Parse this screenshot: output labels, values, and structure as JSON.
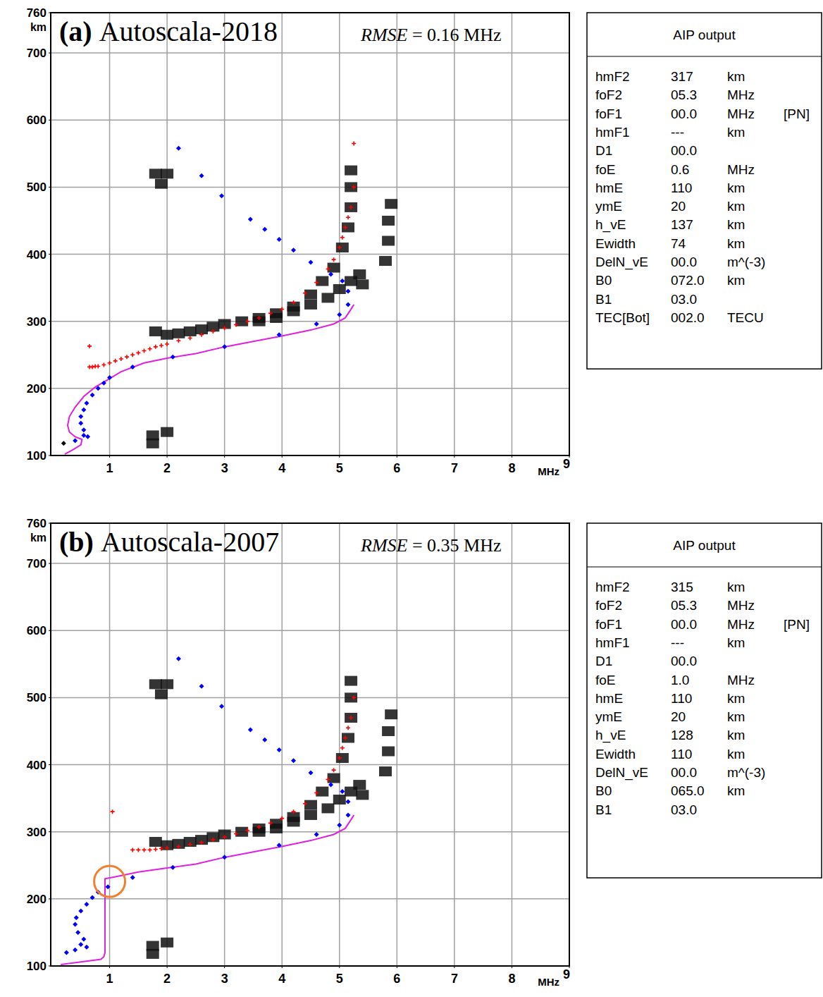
{
  "chart_data": [
    {
      "type": "scatter",
      "panel_label": "(a)",
      "title": "Autoscala-2018",
      "subtitle": "RMSE = 0.16 MHz",
      "xlabel": "MHz",
      "ylabel": "km",
      "xlim": [
        0,
        9
      ],
      "ylim": [
        100,
        760
      ],
      "xticks": [
        1,
        2,
        3,
        4,
        5,
        6,
        7,
        8,
        9
      ],
      "yticks": [
        100,
        200,
        300,
        400,
        500,
        600,
        700,
        760
      ],
      "grid": true,
      "series": [
        {
          "type": "scatter",
          "marker": "square",
          "color": "#111111",
          "x": [
            1.8,
            2.0,
            2.2,
            2.4,
            2.6,
            2.8,
            3.0,
            3.3,
            3.6,
            3.9,
            4.2,
            4.5,
            4.7,
            4.9,
            5.05,
            5.15,
            5.2,
            5.2,
            5.2,
            3.6,
            3.9,
            4.2,
            4.5,
            4.8,
            5.0,
            5.2,
            5.35,
            5.4,
            5.8,
            5.85,
            5.85,
            5.9,
            1.8,
            2.0,
            1.9,
            1.75,
            2.0,
            1.75
          ],
          "values": [
            285,
            280,
            282,
            285,
            288,
            292,
            296,
            300,
            305,
            312,
            322,
            340,
            360,
            380,
            410,
            440,
            470,
            500,
            525,
            300,
            305,
            315,
            325,
            335,
            348,
            360,
            370,
            355,
            390,
            420,
            450,
            475,
            520,
            520,
            505,
            130,
            135,
            118
          ]
        },
        {
          "type": "line",
          "line_style": "solid",
          "color": "#e020e0",
          "x": [
            0.22,
            0.35,
            0.5,
            0.52,
            0.4,
            0.3,
            0.27,
            0.3,
            0.4,
            0.55,
            0.75,
            0.95,
            1.2,
            1.6,
            2.0,
            2.5,
            3.0,
            3.5,
            4.0,
            4.5,
            4.9,
            5.1,
            5.2,
            5.25
          ],
          "values": [
            102,
            108,
            116,
            124,
            128,
            135,
            145,
            158,
            172,
            188,
            202,
            212,
            225,
            238,
            245,
            252,
            262,
            270,
            278,
            287,
            296,
            305,
            318,
            325
          ]
        },
        {
          "type": "scatter",
          "marker": "plus",
          "color": "#ff0000",
          "x": [
            0.65,
            0.7,
            0.75,
            0.8,
            0.9,
            1.0,
            1.1,
            1.2,
            1.3,
            1.4,
            1.5,
            1.6,
            1.7,
            1.8,
            1.9,
            2.0,
            2.2,
            2.4,
            2.6,
            2.8,
            3.0,
            3.2,
            3.4,
            3.6,
            3.8,
            4.0,
            4.2,
            4.4,
            4.6,
            4.8,
            4.9,
            5.0,
            5.05,
            5.1,
            5.15,
            5.2,
            5.25,
            0.65,
            5.25
          ],
          "values": [
            232,
            232,
            233,
            233,
            235,
            238,
            241,
            244,
            247,
            250,
            253,
            256,
            259,
            262,
            264,
            266,
            271,
            275,
            280,
            285,
            290,
            295,
            300,
            305,
            312,
            318,
            328,
            342,
            358,
            378,
            392,
            410,
            425,
            440,
            455,
            470,
            500,
            263,
            565
          ]
        },
        {
          "type": "scatter",
          "marker": "diamond",
          "color": "#0000ff",
          "x": [
            0.4,
            0.55,
            0.62,
            0.55,
            0.5,
            0.5,
            0.55,
            0.6,
            0.7,
            0.8,
            0.9,
            1.0,
            1.4,
            2.1,
            3.0,
            3.95,
            4.6,
            5.0,
            5.15,
            5.15,
            5.05,
            4.85,
            4.5,
            4.2,
            3.95,
            3.7,
            3.45,
            2.95,
            2.6,
            2.2
          ],
          "values": [
            122,
            130,
            128,
            138,
            148,
            158,
            168,
            178,
            190,
            200,
            208,
            216,
            232,
            247,
            262,
            280,
            296,
            310,
            325,
            345,
            360,
            370,
            388,
            406,
            422,
            437,
            452,
            487,
            517,
            558
          ]
        },
        {
          "type": "scatter",
          "marker": "diamond",
          "color": "#000000",
          "x": [
            0.2
          ],
          "values": [
            118
          ]
        }
      ]
    },
    {
      "type": "scatter",
      "panel_label": "(b)",
      "title": "Autoscala-2007",
      "subtitle": "RMSE = 0.35 MHz",
      "xlabel": "MHz",
      "ylabel": "km",
      "xlim": [
        0,
        9
      ],
      "ylim": [
        100,
        760
      ],
      "xticks": [
        1,
        2,
        3,
        4,
        5,
        6,
        7,
        8,
        9
      ],
      "yticks": [
        100,
        200,
        300,
        400,
        500,
        600,
        700,
        760
      ],
      "grid": true,
      "series": [
        {
          "type": "scatter",
          "marker": "square",
          "color": "#111111",
          "x": [
            1.8,
            2.0,
            2.2,
            2.4,
            2.6,
            2.8,
            3.0,
            3.3,
            3.6,
            3.9,
            4.2,
            4.5,
            4.7,
            4.9,
            5.05,
            5.15,
            5.2,
            5.2,
            5.2,
            3.6,
            3.9,
            4.2,
            4.5,
            4.8,
            5.0,
            5.2,
            5.35,
            5.4,
            5.8,
            5.85,
            5.85,
            5.9,
            1.8,
            2.0,
            1.9,
            1.75,
            2.0,
            1.75
          ],
          "values": [
            285,
            280,
            282,
            285,
            288,
            292,
            296,
            300,
            305,
            312,
            322,
            340,
            360,
            380,
            410,
            440,
            470,
            500,
            525,
            300,
            305,
            315,
            325,
            335,
            348,
            360,
            370,
            355,
            390,
            420,
            450,
            475,
            520,
            520,
            505,
            130,
            135,
            118
          ]
        },
        {
          "type": "line",
          "line_style": "solid",
          "color": "#e020e0",
          "x": [
            0.15,
            0.5,
            0.85,
            0.9,
            0.92,
            0.92,
            1.1,
            1.5,
            2.0,
            2.5,
            3.0,
            3.5,
            4.0,
            4.5,
            4.9,
            5.1,
            5.2,
            5.25
          ],
          "values": [
            102,
            106,
            110,
            114,
            120,
            230,
            233,
            240,
            246,
            252,
            262,
            270,
            278,
            287,
            296,
            305,
            318,
            325
          ]
        },
        {
          "type": "scatter",
          "marker": "plus",
          "color": "#ff0000",
          "x": [
            1.4,
            1.5,
            1.6,
            1.7,
            1.8,
            1.9,
            2.0,
            2.2,
            2.4,
            2.6,
            2.8,
            3.0,
            3.2,
            3.4,
            3.6,
            3.8,
            4.0,
            4.2,
            4.4,
            4.6,
            4.8,
            4.9,
            5.0,
            5.05,
            5.1,
            5.15,
            5.2,
            5.25,
            1.05
          ],
          "values": [
            273,
            273,
            273,
            273,
            274,
            275,
            276,
            278,
            281,
            284,
            288,
            292,
            297,
            302,
            307,
            313,
            320,
            330,
            342,
            358,
            378,
            392,
            410,
            425,
            440,
            455,
            470,
            500,
            330
          ]
        },
        {
          "type": "scatter",
          "marker": "diamond",
          "color": "#0000ff",
          "x": [
            0.25,
            0.4,
            0.5,
            0.6,
            0.55,
            0.45,
            0.4,
            0.42,
            0.5,
            0.6,
            0.7,
            0.8,
            0.97,
            1.4,
            2.1,
            3.0,
            3.95,
            4.6,
            5.0,
            5.15,
            5.15,
            5.05,
            4.85,
            4.5,
            4.2,
            3.95,
            3.7,
            3.45,
            2.95,
            2.6,
            2.2
          ],
          "values": [
            120,
            124,
            132,
            128,
            140,
            150,
            162,
            172,
            182,
            192,
            202,
            210,
            218,
            232,
            247,
            262,
            280,
            296,
            310,
            325,
            345,
            360,
            370,
            388,
            406,
            422,
            437,
            452,
            487,
            517,
            558
          ]
        }
      ],
      "annotations": [
        {
          "type": "circle",
          "x": 1.0,
          "y": 226,
          "color": "#f08030"
        }
      ]
    }
  ],
  "aip_output": [
    {
      "title": "AIP output",
      "rows": [
        [
          "hmF2",
          "317",
          "km"
        ],
        [
          "foF2",
          "05.3",
          "MHz"
        ],
        [
          "foF1",
          "00.0",
          "MHz",
          "[PN]"
        ],
        [
          "hmF1",
          "---",
          "km"
        ],
        [
          "D1",
          "00.0"
        ],
        [
          "foE",
          "0.6",
          "MHz"
        ],
        [
          "hmE",
          "110",
          "km"
        ],
        [
          "ymE",
          "20",
          "km"
        ],
        [
          "h_vE",
          "137",
          "km"
        ],
        [
          "Ewidth",
          "74",
          "km"
        ],
        [
          "DelN_vE",
          "00.0",
          "m^(-3)"
        ],
        [
          "B0",
          "072.0",
          "km"
        ],
        [
          "B1",
          "03.0"
        ],
        [
          "TEC[Bot]",
          "002.0",
          "TECU"
        ]
      ]
    },
    {
      "title": "AIP output",
      "rows": [
        [
          "hmF2",
          "315",
          "km"
        ],
        [
          "foF2",
          "05.3",
          "MHz"
        ],
        [
          "foF1",
          "00.0",
          "MHz",
          "[PN]"
        ],
        [
          "hmF1",
          "---",
          "km"
        ],
        [
          "D1",
          "00.0"
        ],
        [
          "foE",
          "1.0",
          "MHz"
        ],
        [
          "hmE",
          "110",
          "km"
        ],
        [
          "ymE",
          "20",
          "km"
        ],
        [
          "h_vE",
          "128",
          "km"
        ],
        [
          "Ewidth",
          "110",
          "km"
        ],
        [
          "DelN_vE",
          "00.0",
          "m^(-3)"
        ],
        [
          "B0",
          "065.0",
          "km"
        ],
        [
          "B1",
          "03.0"
        ]
      ]
    }
  ]
}
